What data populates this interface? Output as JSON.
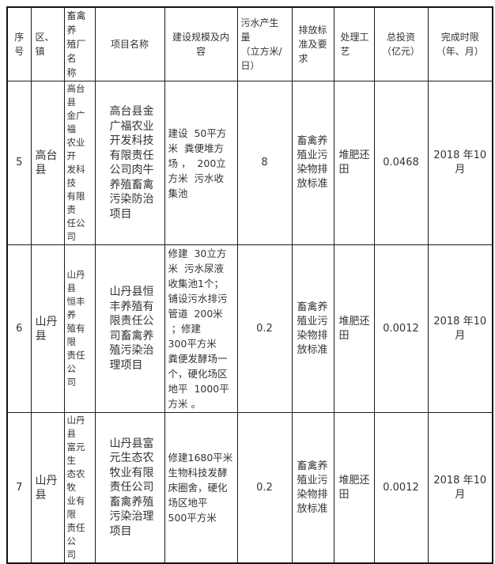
{
  "colors": {
    "page_background": "#ffffff",
    "cell_background": "#ffffff",
    "border": "#1c1c1c",
    "text": "#333333"
  },
  "table": {
    "headers": [
      "序\n号",
      "区、\n镇",
      "畜禽养\n殖厂名\n称",
      "项目名称",
      "建设规模及内\n容",
      "污水产生\n量\n（立方米/\n日）",
      "排放标\n准及要\n求",
      "处理工\n艺",
      "总投资\n（亿元）",
      "完成时限\n（年、月）"
    ],
    "rows": [
      [
        "5",
        "高台\n县",
        "高台县\n金广福\n农业开\n发科技\n有限责\n任公司",
        "高台县金\n广福农业\n开发科技\n有限责任\n公司肉牛\n养殖畜禽\n污染防治\n项目",
        "建设  50平方\n米  粪便堆方\n场 ，  200立\n方米  污水收\n集池",
        "8",
        "畜禽养\n殖业污\n染物排\n放标准",
        "堆肥还\n田",
        "0.0468",
        "2018 年10\n月"
      ],
      [
        "6",
        "山丹\n县",
        "山丹县\n恒丰养\n殖有限\n责任公\n司",
        "山丹县恒\n丰养殖有\n限责任公\n司畜禽养\n殖污染治\n理项目",
        "修建  30立方\n米  污水尿液\n收集池1个；\n铺设污水排污\n管道  200米\n ；修建\n300平方米\n粪便发酵场一\n个，硬化场区\n地平  1000平\n方米 。",
        "0.2",
        "畜禽养\n殖业污\n染物排\n放标准",
        "堆肥还\n田",
        "0.0012",
        "2018 年10\n月"
      ],
      [
        "7",
        "山丹\n县",
        "山丹县\n富元生\n态农牧\n业有限\n责任公\n司",
        "山丹县富\n元生态农\n牧业有限\n责任公司\n畜禽养殖\n污染治理\n项目",
        "修建1680平米\n生物科技发酵\n床圈舍，硬化\n场区地平\n500平方米",
        "0.2",
        "畜禽养\n殖业污\n染物排\n放标准",
        "堆肥还\n田",
        "0.0012",
        "2018 年10\n月"
      ]
    ]
  }
}
